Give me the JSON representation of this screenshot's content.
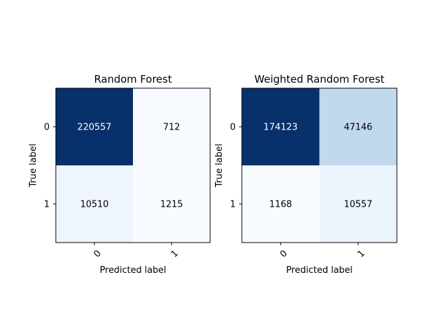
{
  "chart_data": [
    {
      "type": "heatmap",
      "title": "Random Forest",
      "xlabel": "Predicted label",
      "ylabel": "True label",
      "x_ticks": [
        "0",
        "1"
      ],
      "y_ticks": [
        "0",
        "1"
      ],
      "matrix": [
        [
          220557,
          712
        ],
        [
          10510,
          1215
        ]
      ],
      "cell_labels": [
        [
          "220557",
          "712"
        ],
        [
          "10510",
          "1215"
        ]
      ],
      "colormap": "Blues",
      "grid": false
    },
    {
      "type": "heatmap",
      "title": "Weighted Random Forest",
      "xlabel": "Predicted label",
      "ylabel": "True label",
      "x_ticks": [
        "0",
        "1"
      ],
      "y_ticks": [
        "0",
        "1"
      ],
      "matrix": [
        [
          174123,
          47146
        ],
        [
          1168,
          10557
        ]
      ],
      "cell_labels": [
        [
          "174123",
          "47146"
        ],
        [
          "1168",
          "10557"
        ]
      ],
      "colormap": "Blues",
      "grid": false
    }
  ]
}
